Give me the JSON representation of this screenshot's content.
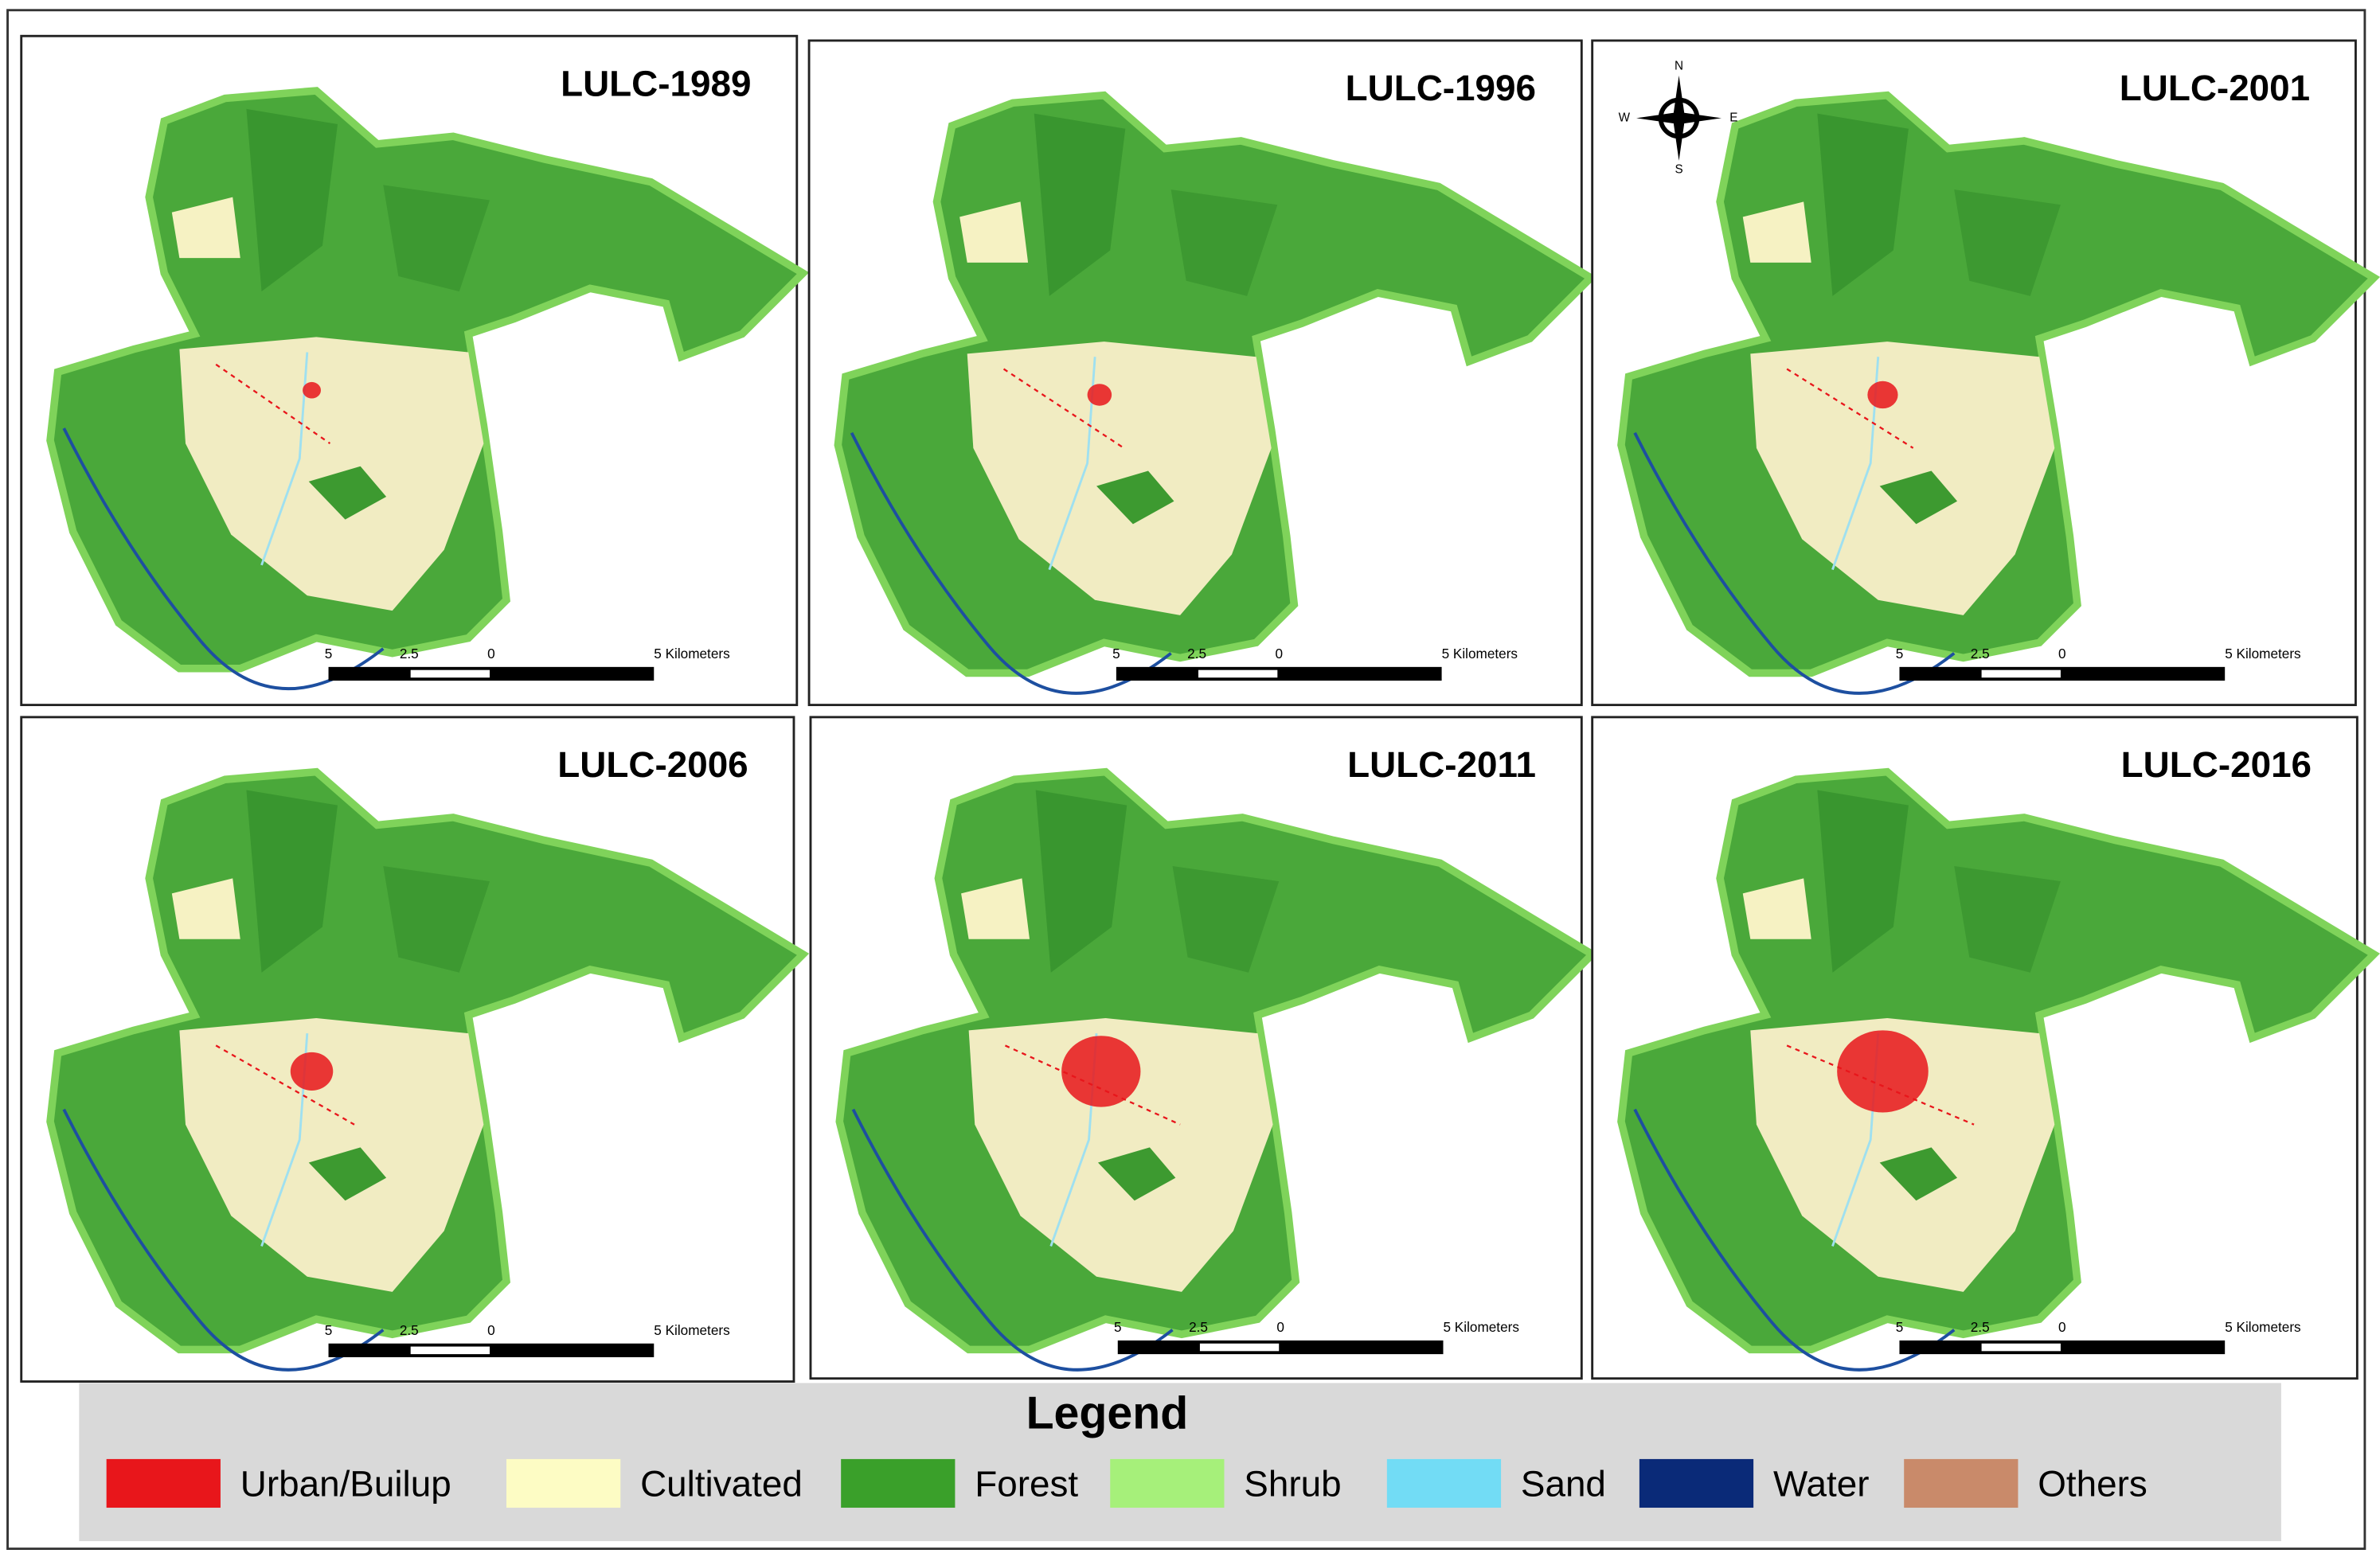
{
  "panels": [
    {
      "title": "LULC-1989",
      "scale_labels": [
        "5",
        "2.5",
        "0",
        "5 Kilometers"
      ]
    },
    {
      "title": "LULC-1996",
      "scale_labels": [
        "5",
        "2.5",
        "0",
        "5 Kilometers"
      ]
    },
    {
      "title": "LULC-2001",
      "scale_labels": [
        "5",
        "2.5",
        "0",
        "5 Kilometers"
      ]
    },
    {
      "title": "LULC-2006",
      "scale_labels": [
        "5",
        "2.5",
        "0",
        "5 Kilometers"
      ]
    },
    {
      "title": "LULC-2011",
      "scale_labels": [
        "5",
        "2.5",
        "0",
        "5 Kilometers"
      ]
    },
    {
      "title": "LULC-2016",
      "scale_labels": [
        "5",
        "2.5",
        "0",
        "5 Kilometers"
      ]
    }
  ],
  "compass": {
    "north": "N",
    "east": "E",
    "south": "S",
    "west": "W"
  },
  "legend": {
    "title": "Legend",
    "items": [
      {
        "label": "Urban/Builup",
        "color": "#e8161b"
      },
      {
        "label": "Cultivated",
        "color": "#fdfcc4"
      },
      {
        "label": "Forest",
        "color": "#3aa02a"
      },
      {
        "label": "Shrub",
        "color": "#a6f07a"
      },
      {
        "label": "Sand",
        "color": "#72dcf5"
      },
      {
        "label": "Water",
        "color": "#0a2a78"
      },
      {
        "label": "Others",
        "color": "#c98a6a"
      }
    ]
  }
}
